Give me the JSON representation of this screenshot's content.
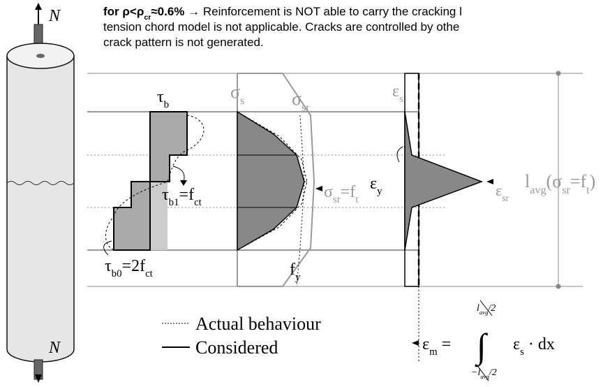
{
  "note": {
    "lines": [
      [
        {
          "t": "for ρ<ρ",
          "b": true
        },
        {
          "t": "cr",
          "b": true,
          "sub": true
        },
        {
          "t": "≈0.6%",
          "b": true
        },
        {
          "t": " → Reinforcement is NOT able to carry the cracking l"
        }
      ],
      [
        {
          "t": "tension chord model is not applicable. Cracks are controlled by othe"
        }
      ],
      [
        {
          "t": "crack pattern is not generated."
        }
      ]
    ]
  },
  "labels": {
    "n_top": [
      {
        "t": "N"
      }
    ],
    "n_bottom": [
      {
        "t": "N"
      }
    ],
    "tau_b": [
      {
        "t": "τ"
      },
      {
        "t": "b",
        "sub": true
      }
    ],
    "tau_b1": [
      {
        "t": "τ"
      },
      {
        "t": "b1",
        "sub": true
      },
      {
        "t": "=f"
      },
      {
        "t": "ct",
        "sub": true
      }
    ],
    "tau_b0": [
      {
        "t": "τ"
      },
      {
        "t": "b0",
        "sub": true
      },
      {
        "t": "=2f"
      },
      {
        "t": "ct",
        "sub": true
      }
    ],
    "sigma_s": [
      {
        "t": "σ"
      },
      {
        "t": "s",
        "sub": true
      }
    ],
    "sigma_sr": [
      {
        "t": "σ"
      },
      {
        "t": "sr",
        "sub": true
      }
    ],
    "sigma_sr_ft": [
      {
        "t": "σ"
      },
      {
        "t": "sr",
        "sub": true
      },
      {
        "t": "=f"
      },
      {
        "t": "t",
        "sub": true
      }
    ],
    "f_y": [
      {
        "t": "f"
      },
      {
        "t": "y",
        "sub": true
      }
    ],
    "eps_s": [
      {
        "t": "ε"
      },
      {
        "t": "s",
        "sub": true
      }
    ],
    "eps_y": [
      {
        "t": "ε"
      },
      {
        "t": "y",
        "sub": true
      }
    ],
    "eps_sr": [
      {
        "t": "ε"
      },
      {
        "t": "sr",
        "sub": true
      }
    ],
    "l_avg": [
      {
        "t": "l"
      },
      {
        "t": "avg",
        "sub": true
      },
      {
        "t": "(σ"
      },
      {
        "t": "sr",
        "sub": true
      },
      {
        "t": "=f"
      },
      {
        "t": "t",
        "sub": true
      },
      {
        "t": ")"
      }
    ]
  },
  "legend": {
    "actual": "Actual behaviour",
    "considered": "Considered"
  },
  "formula": {
    "lhs": [
      {
        "t": "ε"
      },
      {
        "t": "m",
        "sub": true
      },
      {
        "t": " ="
      }
    ],
    "integral": [
      {
        "t": "∫"
      }
    ],
    "upper": [
      {
        "t": "l"
      },
      {
        "t": "avg",
        "sub": true
      },
      {
        "t": "/2"
      }
    ],
    "lower": [
      {
        "t": "−l"
      },
      {
        "t": "avg",
        "sub": true
      },
      {
        "t": "/2"
      }
    ],
    "body": [
      {
        "t": "ε"
      },
      {
        "t": "s",
        "sub": true
      },
      {
        "t": " · dx"
      }
    ]
  }
}
